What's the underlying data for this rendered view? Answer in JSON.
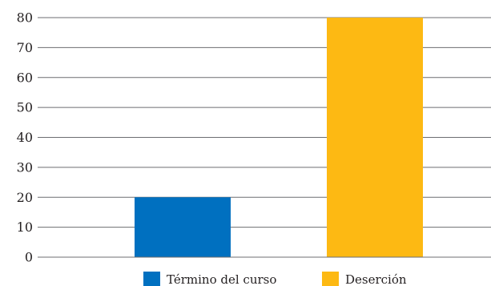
{
  "chart_data": {
    "type": "bar",
    "categories": [
      "Término del curso",
      "Deserción"
    ],
    "series": [
      {
        "name": "Término del curso",
        "values": [
          20,
          null
        ],
        "color": "#0070c0"
      },
      {
        "name": "Deserción",
        "values": [
          null,
          80
        ],
        "color": "#fdb913"
      }
    ],
    "values": [
      20,
      80
    ],
    "title": "",
    "xlabel": "",
    "ylabel": "",
    "ylim": [
      0,
      80
    ],
    "yticks": [
      0,
      10,
      20,
      30,
      40,
      50,
      60,
      70,
      80
    ],
    "grid": true,
    "legend": {
      "placement": "bottom",
      "entries": [
        {
          "label": "Término del curso",
          "color": "#0070c0"
        },
        {
          "label": "Deserción",
          "color": "#fdb913"
        }
      ]
    }
  }
}
